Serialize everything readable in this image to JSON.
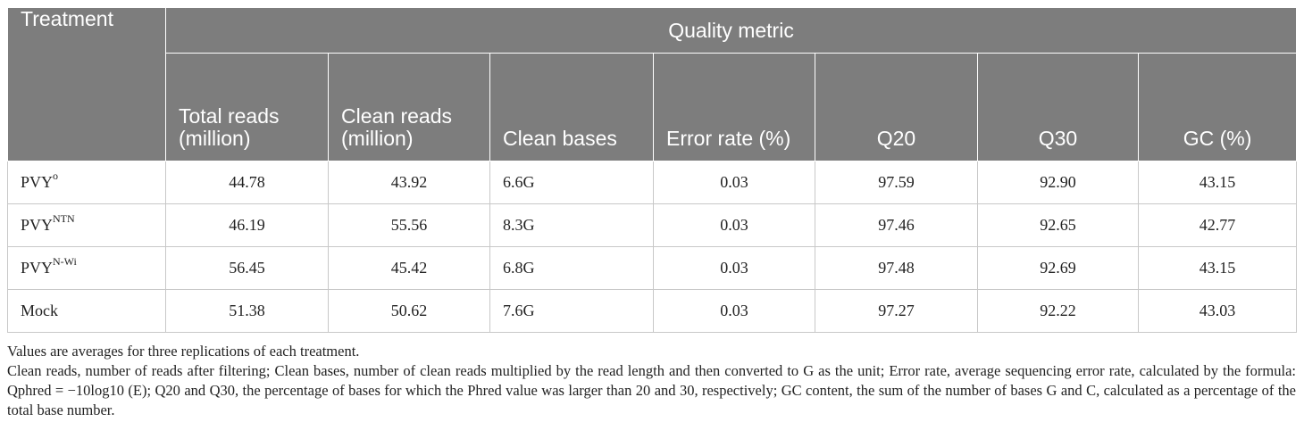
{
  "table": {
    "header": {
      "treatment": "Treatment",
      "quality_metric": "Quality metric",
      "columns": [
        "Total reads (million)",
        "Clean reads (million)",
        "Clean bases",
        "Error rate (%)",
        "Q20",
        "Q30",
        "GC (%)"
      ]
    },
    "rows": [
      {
        "name": "PVY",
        "sup": "o",
        "total_reads": "44.78",
        "clean_reads": "43.92",
        "clean_bases": "6.6G",
        "error_rate": "0.03",
        "q20": "97.59",
        "q30": "92.90",
        "gc": "43.15"
      },
      {
        "name": "PVY",
        "sup": "NTN",
        "total_reads": "46.19",
        "clean_reads": "55.56",
        "clean_bases": "8.3G",
        "error_rate": "0.03",
        "q20": "97.46",
        "q30": "92.65",
        "gc": "42.77"
      },
      {
        "name": "PVY",
        "sup": "N-Wi",
        "total_reads": "56.45",
        "clean_reads": "45.42",
        "clean_bases": "6.8G",
        "error_rate": "0.03",
        "q20": "97.48",
        "q30": "92.69",
        "gc": "43.15"
      },
      {
        "name": "Mock",
        "sup": "",
        "total_reads": "51.38",
        "clean_reads": "50.62",
        "clean_bases": "7.6G",
        "error_rate": "0.03",
        "q20": "97.27",
        "q30": "92.22",
        "gc": "43.03"
      }
    ]
  },
  "notes": {
    "line1": "Values are averages for three replications of each treatment.",
    "line2": "Clean reads, number of reads after filtering; Clean bases, number of clean reads multiplied by the read length and then converted to G as the unit; Error rate, average sequencing error rate, calculated by the formula: Qphred = −10log10 (E); Q20 and Q30, the percentage of bases for which the Phred value was larger than 20 and 30, respectively; GC content, the sum of the number of bases G and C, calculated as a percentage of the total base number."
  },
  "colors": {
    "header_bg": "#7d7d7d",
    "header_text": "#ffffff",
    "border": "#c8c8c8",
    "body_text": "#222222"
  }
}
